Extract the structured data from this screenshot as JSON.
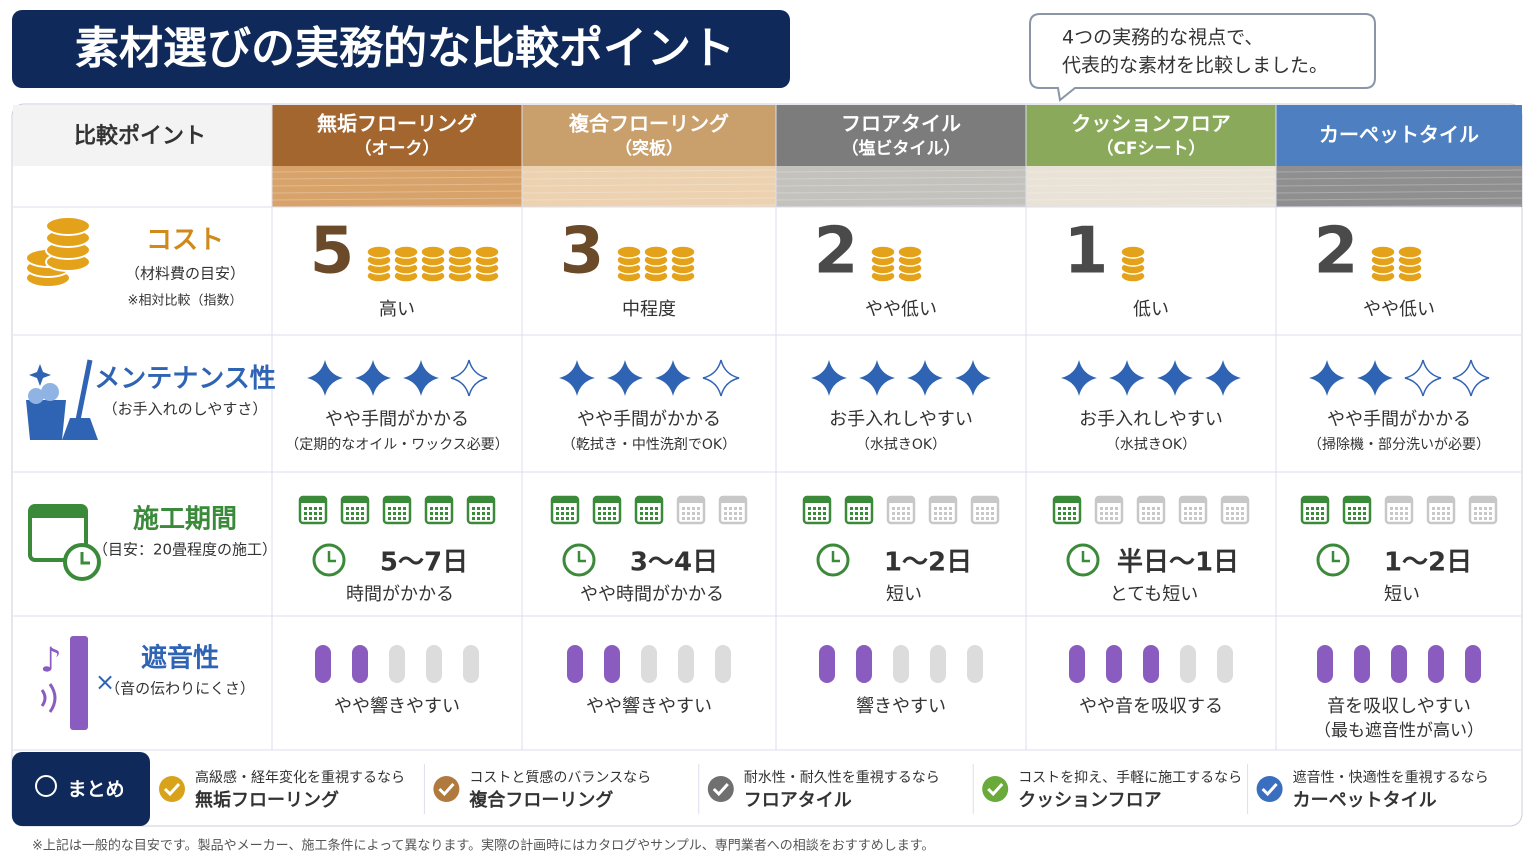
{
  "title": "素材選びの実務的な比較ポイント",
  "bubble": [
    "4つの実務的な視点で、",
    "代表的な素材を比較しました。"
  ],
  "table": {
    "corner": "比較ポイント",
    "columns": [
      {
        "name": "無垢フローリング",
        "sub": "（オーク）",
        "color": "#a3662f",
        "texture": "#d8a36a"
      },
      {
        "name": "複合フローリング",
        "sub": "（突板）",
        "color": "#c99f6c",
        "texture": "#ecd2b0"
      },
      {
        "name": "フロアタイル",
        "sub": "（塩ビタイル）",
        "color": "#7c7c7c",
        "texture": "#c4c2bd"
      },
      {
        "name": "クッションフロア",
        "sub": "（CFシート）",
        "color": "#8aa95b",
        "texture": "#e9e2d6"
      },
      {
        "name": "カーペットタイル",
        "color": "#4d7fc1",
        "texture": "#8f8f8f"
      }
    ],
    "rows": [
      {
        "label": "コスト",
        "sub": "（材料費の目安）",
        "note": "※相対比較（指数）",
        "color": "#d08a1c",
        "cells": [
          {
            "value": 5,
            "text": "高い"
          },
          {
            "value": 3,
            "text": "中程度"
          },
          {
            "value": 2,
            "text": "やや低い"
          },
          {
            "value": 1,
            "text": "低い"
          },
          {
            "value": 2,
            "text": "やや低い"
          }
        ]
      },
      {
        "label": "メンテナンス性",
        "sub": "（お手入れのしやすさ）",
        "color": "#2f63b3",
        "scale": 4,
        "cells": [
          {
            "stars": 3,
            "text": "やや手間がかかる",
            "note": "（定期的なオイル・ワックス必要）"
          },
          {
            "stars": 3,
            "text": "やや手間がかかる",
            "note": "（乾拭き・中性洗剤でOK）"
          },
          {
            "stars": 4,
            "text": "お手入れしやすい",
            "note": "（水拭きOK）"
          },
          {
            "stars": 4,
            "text": "お手入れしやすい",
            "note": "（水拭きOK）"
          },
          {
            "stars": 2,
            "text": "やや手間がかかる",
            "note": "（掃除機・部分洗いが必要）"
          }
        ]
      },
      {
        "label": "施工期間",
        "sub": "（目安：20畳程度の施工）",
        "color": "#3a8a3a",
        "scale": 5,
        "cells": [
          {
            "filled": 5,
            "range": "5〜7日",
            "text": "時間がかかる"
          },
          {
            "filled": 3,
            "range": "3〜4日",
            "text": "やや時間がかかる"
          },
          {
            "filled": 2,
            "range": "1〜2日",
            "text": "短い"
          },
          {
            "filled": 1,
            "range": "半日〜1日",
            "text": "とても短い"
          },
          {
            "filled": 2,
            "range": "1〜2日",
            "text": "短い"
          }
        ]
      },
      {
        "label": "遮音性",
        "sub": "（音の伝わりにくさ）",
        "color": "#2f63b3",
        "scale": 5,
        "cells": [
          {
            "level": 2,
            "text": "やや響きやすい"
          },
          {
            "level": 2,
            "text": "やや響きやすい"
          },
          {
            "level": 2,
            "text": "響きやすい"
          },
          {
            "level": 3,
            "text": "やや音を吸収する"
          },
          {
            "level": 5,
            "text": "音を吸収しやすい",
            "note": "（最も遮音性が高い）"
          }
        ]
      }
    ]
  },
  "summary": {
    "label": "まとめ",
    "items": [
      {
        "line1": "高級感・経年変化を重視するなら",
        "line2": "無垢フローリング",
        "color": "#d9a21b"
      },
      {
        "line1": "コストと質感のバランスなら",
        "line2": "複合フローリング",
        "color": "#b07a3e"
      },
      {
        "line1": "耐水性・耐久性を重視するなら",
        "line2": "フロアタイル",
        "color": "#707070"
      },
      {
        "line1": "コストを抑え、手軽に施工するなら",
        "line2": "クッションフロア",
        "color": "#6aaa3a"
      },
      {
        "line1": "遮音性・快適性を重視するなら",
        "line2": "カーペットタイル",
        "color": "#3a6fc0"
      }
    ]
  },
  "footer": "※上記は一般的な目安です。製品やメーカー、施工条件によって異なります。実際の計画時にはカタログやサンプル、専門業者への相談をおすすめします。"
}
